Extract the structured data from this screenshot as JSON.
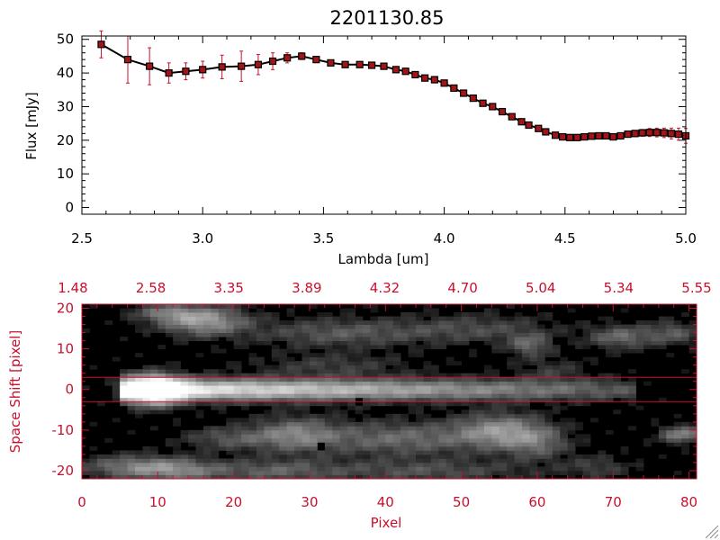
{
  "colors": {
    "red": "#c8102e",
    "black": "#000000",
    "marker_fill": "#a01515"
  },
  "chart_data": [
    {
      "type": "line",
      "title": "2201130.85",
      "xlabel": "Lambda [um]",
      "ylabel": "Flux [mJy]",
      "xlim": [
        2.5,
        5.0
      ],
      "ylim": [
        -2,
        51
      ],
      "x_ticks": [
        "2.5",
        "3.0",
        "3.5",
        "4.0",
        "4.5",
        "5.0"
      ],
      "y_ticks": [
        "0",
        "10",
        "20",
        "30",
        "40",
        "50"
      ],
      "series": [
        {
          "x": [
            2.58,
            2.69,
            2.78,
            2.86,
            2.93,
            3.0,
            3.08,
            3.16,
            3.23,
            3.29,
            3.35,
            3.41,
            3.47,
            3.53,
            3.59,
            3.65,
            3.7,
            3.75,
            3.8,
            3.84,
            3.88,
            3.92,
            3.96,
            4.0,
            4.04,
            4.08,
            4.12,
            4.16,
            4.2,
            4.24,
            4.28,
            4.32,
            4.35,
            4.39,
            4.42,
            4.46,
            4.49,
            4.52,
            4.55,
            4.58,
            4.61,
            4.64,
            4.67,
            4.7,
            4.73,
            4.76,
            4.79,
            4.82,
            4.85,
            4.88,
            4.91,
            4.94,
            4.97,
            5.0
          ],
          "y": [
            48.5,
            44.0,
            42.0,
            40.0,
            40.5,
            41.0,
            41.8,
            42.0,
            42.5,
            43.5,
            44.5,
            45.0,
            44.0,
            43.0,
            42.5,
            42.5,
            42.3,
            42.0,
            41.0,
            40.5,
            39.5,
            38.5,
            38.0,
            37.0,
            35.5,
            34.0,
            32.5,
            31.0,
            30.0,
            28.5,
            27.0,
            25.5,
            24.5,
            23.5,
            22.5,
            21.5,
            21.0,
            20.8,
            20.8,
            21.0,
            21.2,
            21.3,
            21.3,
            21.0,
            21.3,
            21.8,
            22.0,
            22.2,
            22.3,
            22.3,
            22.2,
            22.0,
            21.8,
            21.3
          ],
          "yerr": [
            4.0,
            7.0,
            5.5,
            3.0,
            2.5,
            2.5,
            3.5,
            4.5,
            3.0,
            2.5,
            1.5,
            1.0,
            0.7,
            0.6,
            0.6,
            0.6,
            0.6,
            0.6,
            0.6,
            0.6,
            0.6,
            0.6,
            0.6,
            0.6,
            0.6,
            0.6,
            0.6,
            0.6,
            0.6,
            0.6,
            0.6,
            0.6,
            0.6,
            0.6,
            0.6,
            0.6,
            0.6,
            0.6,
            0.6,
            0.6,
            0.6,
            0.6,
            0.6,
            0.6,
            0.6,
            0.8,
            0.9,
            1.0,
            1.2,
            1.3,
            1.4,
            1.6,
            1.8,
            2.2
          ]
        }
      ]
    },
    {
      "type": "heatmap",
      "xlabel": "Pixel",
      "ylabel": "Space Shift [pixel]",
      "xlim": [
        0,
        81
      ],
      "ylim": [
        -22,
        21
      ],
      "x_ticks": [
        "0",
        "10",
        "20",
        "30",
        "40",
        "50",
        "60",
        "70",
        "80"
      ],
      "y_ticks": [
        "-20",
        "-10",
        "0",
        "10",
        "20"
      ],
      "top_ticks": [
        "1.48",
        "2.58",
        "3.35",
        "3.89",
        "4.32",
        "4.70",
        "5.04",
        "5.34",
        "5.55"
      ],
      "lines_at_y": [
        3,
        -3
      ],
      "blobs": [
        {
          "x": 9.5,
          "y": 0,
          "sx": 2.5,
          "sy": 2.5,
          "v": 1.0
        },
        {
          "x": 16,
          "y": 17,
          "sx": 4,
          "sy": 2.5,
          "v": 0.55
        },
        {
          "x": 11,
          "y": 19,
          "sx": 3,
          "sy": 1.5,
          "v": 0.3
        },
        {
          "x": 34,
          "y": 14,
          "sx": 8,
          "sy": 2.5,
          "v": 0.28
        },
        {
          "x": 52,
          "y": 15,
          "sx": 7,
          "sy": 2.5,
          "v": 0.22
        },
        {
          "x": 59,
          "y": 11,
          "sx": 2,
          "sy": 2,
          "v": 0.32
        },
        {
          "x": 71,
          "y": 13,
          "sx": 3,
          "sy": 2,
          "v": 0.35
        },
        {
          "x": 78,
          "y": 14,
          "sx": 2.5,
          "sy": 2,
          "v": 0.28
        },
        {
          "x": 33,
          "y": 6,
          "sx": 7,
          "sy": 2,
          "v": 0.18
        },
        {
          "x": 28,
          "y": -11,
          "sx": 4,
          "sy": 3,
          "v": 0.4
        },
        {
          "x": 42,
          "y": -12,
          "sx": 8,
          "sy": 3,
          "v": 0.35
        },
        {
          "x": 55,
          "y": -10,
          "sx": 4,
          "sy": 3,
          "v": 0.45
        },
        {
          "x": 60,
          "y": -13,
          "sx": 3,
          "sy": 3,
          "v": 0.3
        },
        {
          "x": 19,
          "y": -12,
          "sx": 4,
          "sy": 2,
          "v": 0.25
        },
        {
          "x": 7,
          "y": -19,
          "sx": 5,
          "sy": 2,
          "v": 0.4
        },
        {
          "x": 13,
          "y": -20,
          "sx": 4,
          "sy": 2,
          "v": 0.3
        },
        {
          "x": 25,
          "y": -20,
          "sx": 6,
          "sy": 2,
          "v": 0.28
        },
        {
          "x": 45,
          "y": -20,
          "sx": 10,
          "sy": 2,
          "v": 0.25
        },
        {
          "x": 79,
          "y": -11,
          "sx": 2,
          "sy": 1.5,
          "v": 0.45
        },
        {
          "x": 68,
          "y": -19,
          "sx": 3,
          "sy": 2,
          "v": 0.18
        },
        {
          "x": 62,
          "y": 5,
          "sx": 3,
          "sy": 2,
          "v": 0.15
        }
      ],
      "dark_spots": [
        {
          "x": 36.5,
          "y": -3
        },
        {
          "x": 31.5,
          "y": -14
        }
      ]
    }
  ]
}
